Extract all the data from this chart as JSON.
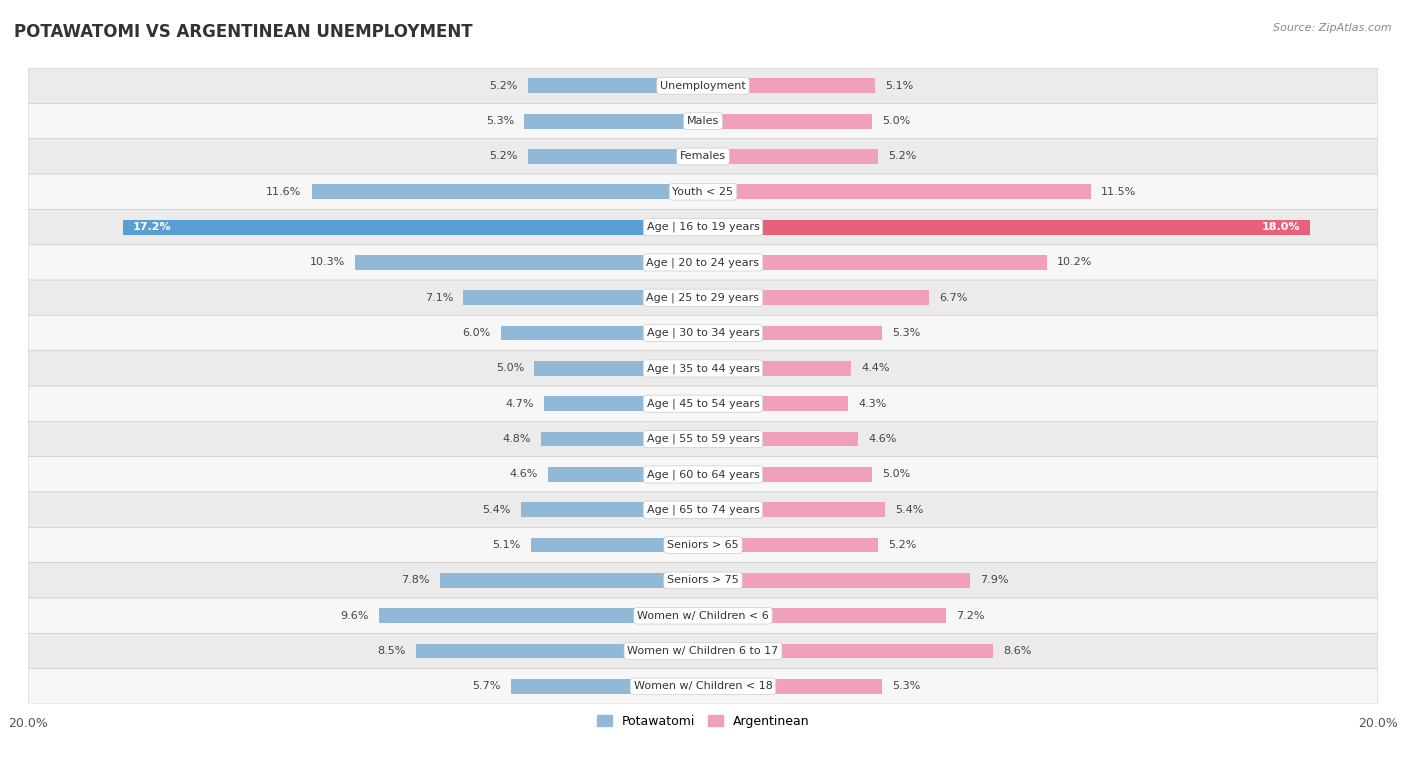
{
  "title": "POTAWATOMI VS ARGENTINEAN UNEMPLOYMENT",
  "source": "Source: ZipAtlas.com",
  "categories": [
    "Unemployment",
    "Males",
    "Females",
    "Youth < 25",
    "Age | 16 to 19 years",
    "Age | 20 to 24 years",
    "Age | 25 to 29 years",
    "Age | 30 to 34 years",
    "Age | 35 to 44 years",
    "Age | 45 to 54 years",
    "Age | 55 to 59 years",
    "Age | 60 to 64 years",
    "Age | 65 to 74 years",
    "Seniors > 65",
    "Seniors > 75",
    "Women w/ Children < 6",
    "Women w/ Children 6 to 17",
    "Women w/ Children < 18"
  ],
  "potawatomi": [
    5.2,
    5.3,
    5.2,
    11.6,
    17.2,
    10.3,
    7.1,
    6.0,
    5.0,
    4.7,
    4.8,
    4.6,
    5.4,
    5.1,
    7.8,
    9.6,
    8.5,
    5.7
  ],
  "argentinean": [
    5.1,
    5.0,
    5.2,
    11.5,
    18.0,
    10.2,
    6.7,
    5.3,
    4.4,
    4.3,
    4.6,
    5.0,
    5.4,
    5.2,
    7.9,
    7.2,
    8.6,
    5.3
  ],
  "potawatomi_color": "#92b8d8",
  "argentinean_color": "#f0a0b8",
  "highlight_potawatomi_color": "#5a9fd4",
  "highlight_argentinean_color": "#e8607a",
  "xlim": 20.0,
  "row_even_color": "#ebebeb",
  "row_odd_color": "#f7f7f7",
  "row_border_color": "#d0d0d0",
  "legend_potawatomi": "Potawatomi",
  "legend_argentinean": "Argentinean",
  "highlight_row": "Age | 16 to 19 years"
}
